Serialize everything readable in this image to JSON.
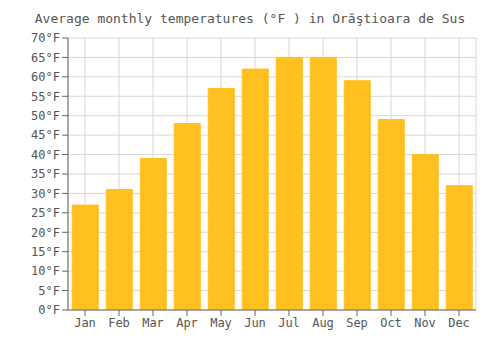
{
  "chart_data": {
    "type": "bar",
    "title": "Average monthly temperatures (°F ) in Orăştioara de Sus",
    "categories": [
      "Jan",
      "Feb",
      "Mar",
      "Apr",
      "May",
      "Jun",
      "Jul",
      "Aug",
      "Sep",
      "Oct",
      "Nov",
      "Dec"
    ],
    "values": [
      27,
      31,
      39,
      48,
      57,
      62,
      65,
      65,
      59,
      49,
      40,
      32
    ],
    "color": "#FFC020",
    "ylim": [
      0,
      70
    ],
    "yticks": [
      {
        "value": 0,
        "label": "0°F"
      },
      {
        "value": 5,
        "label": "5°F"
      },
      {
        "value": 10,
        "label": "10°F"
      },
      {
        "value": 15,
        "label": "15°F"
      },
      {
        "value": 20,
        "label": "20°F"
      },
      {
        "value": 25,
        "label": "25°F"
      },
      {
        "value": 30,
        "label": "30°F"
      },
      {
        "value": 35,
        "label": "35°F"
      },
      {
        "value": 40,
        "label": "40°F"
      },
      {
        "value": 45,
        "label": "45°F"
      },
      {
        "value": 50,
        "label": "50°F"
      },
      {
        "value": 55,
        "label": "55°F"
      },
      {
        "value": 60,
        "label": "60°F"
      },
      {
        "value": 65,
        "label": "65°F"
      },
      {
        "value": 70,
        "label": "70°F"
      }
    ],
    "grid": true
  }
}
